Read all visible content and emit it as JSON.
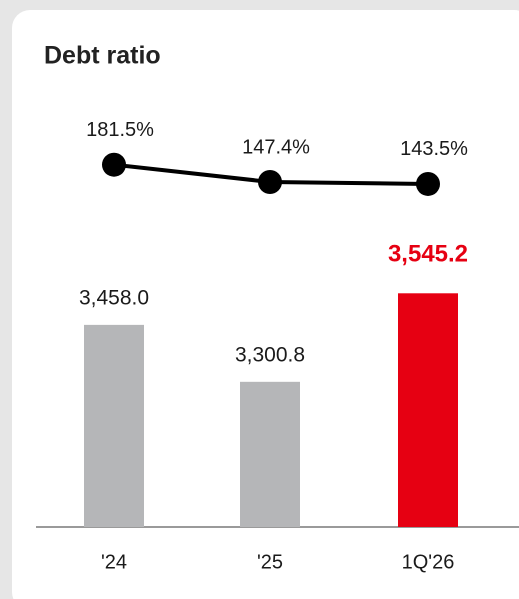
{
  "chart_data": {
    "type": "bar",
    "title": "Debt ratio",
    "categories": [
      "'24",
      "'25",
      "1Q'26"
    ],
    "ylim": [
      2900,
      3800
    ],
    "y2lim": [
      100,
      250
    ],
    "series": [
      {
        "type": "bar",
        "values": [
          3458.0,
          3300.8,
          3545.2
        ],
        "value_labels": [
          "3,458.0",
          "3,300.8",
          "3,545.2"
        ],
        "colors": [
          "#b5b6b8",
          "#b5b6b8",
          "#e60012"
        ],
        "label_colors": [
          "#1a1a1a",
          "#1a1a1a",
          "#e60012"
        ]
      },
      {
        "type": "line",
        "axis": "y2",
        "color": "#000000",
        "values": [
          181.5,
          147.4,
          143.5
        ],
        "value_labels": [
          "181.5%",
          "147.4%",
          "143.5%"
        ]
      }
    ]
  }
}
